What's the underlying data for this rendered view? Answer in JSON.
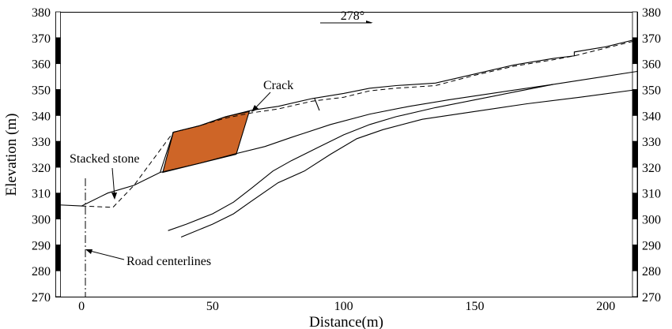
{
  "axes": {
    "xlabel": "Distance(m)",
    "ylabel": "Elevation (m)",
    "x_range": [
      -10,
      212
    ],
    "y_range": [
      270,
      380
    ],
    "x_ticks": [
      "0",
      "50",
      "100",
      "150",
      "200"
    ],
    "y_ticks": [
      "270",
      "280",
      "290",
      "300",
      "310",
      "320",
      "330",
      "340",
      "350",
      "360",
      "370",
      "380"
    ]
  },
  "bearing": "278°",
  "annotations": {
    "crack": "Crack",
    "stacked_stone": "Stacked stone",
    "road_centerline": "Road centerlines"
  },
  "colors": {
    "block": "#CE6527",
    "lines": "#000000"
  },
  "profiles": {
    "ground_surface": [
      [
        -10,
        305.5
      ],
      [
        0,
        305
      ],
      [
        10,
        310
      ],
      [
        20,
        313
      ],
      [
        30,
        318
      ],
      [
        35,
        333.5
      ],
      [
        45,
        336
      ],
      [
        55,
        339.5
      ],
      [
        65,
        342
      ],
      [
        75,
        343.5
      ],
      [
        88,
        346.5
      ],
      [
        100,
        348.5
      ],
      [
        110,
        350.5
      ],
      [
        120,
        351.5
      ],
      [
        135,
        352.5
      ],
      [
        150,
        356
      ],
      [
        165,
        359.5
      ],
      [
        180,
        362
      ],
      [
        188,
        363
      ],
      [
        188,
        364.5
      ],
      [
        200,
        366.5
      ],
      [
        212,
        369.5
      ]
    ],
    "original_surface_dashed": [
      [
        0,
        305
      ],
      [
        12,
        304.5
      ],
      [
        20,
        313
      ],
      [
        35,
        333.5
      ],
      [
        45,
        336
      ],
      [
        55,
        339
      ],
      [
        65,
        341
      ],
      [
        75,
        342.5
      ],
      [
        88,
        345.5
      ],
      [
        100,
        347
      ],
      [
        110,
        349.5
      ],
      [
        120,
        350.5
      ],
      [
        135,
        351.5
      ],
      [
        150,
        355.5
      ],
      [
        165,
        359
      ],
      [
        180,
        361.5
      ],
      [
        188,
        363
      ],
      [
        200,
        366
      ],
      [
        212,
        369
      ]
    ],
    "failure_surface": [
      [
        30,
        318
      ],
      [
        45,
        321.5
      ],
      [
        58,
        325
      ],
      [
        70,
        328
      ],
      [
        80,
        331.5
      ],
      [
        95,
        336.5
      ],
      [
        110,
        340.5
      ],
      [
        125,
        343.5
      ],
      [
        140,
        346
      ],
      [
        160,
        349
      ],
      [
        180,
        352
      ],
      [
        212,
        357
      ]
    ],
    "deep_surface_1": [
      [
        33,
        295.5
      ],
      [
        40,
        298
      ],
      [
        50,
        302
      ],
      [
        58,
        306.5
      ],
      [
        65,
        312
      ],
      [
        73,
        318.5
      ],
      [
        80,
        322.5
      ],
      [
        90,
        327.5
      ],
      [
        100,
        332.5
      ],
      [
        110,
        336.5
      ],
      [
        120,
        339.5
      ],
      [
        135,
        343
      ],
      [
        150,
        346
      ],
      [
        165,
        349
      ],
      [
        180,
        352
      ]
    ],
    "deep_surface_2": [
      [
        38,
        293
      ],
      [
        50,
        298
      ],
      [
        58,
        302
      ],
      [
        65,
        307
      ],
      [
        75,
        314
      ],
      [
        85,
        318.5
      ],
      [
        95,
        325
      ],
      [
        105,
        331
      ],
      [
        115,
        334.5
      ],
      [
        130,
        338.5
      ],
      [
        150,
        341.5
      ],
      [
        170,
        344.5
      ],
      [
        190,
        347
      ],
      [
        212,
        350
      ]
    ],
    "sliding_block": [
      [
        35,
        333.5
      ],
      [
        45,
        336
      ],
      [
        55,
        339.5
      ],
      [
        64,
        341.5
      ],
      [
        59,
        325
      ],
      [
        45,
        321.5
      ],
      [
        31,
        318
      ]
    ]
  }
}
